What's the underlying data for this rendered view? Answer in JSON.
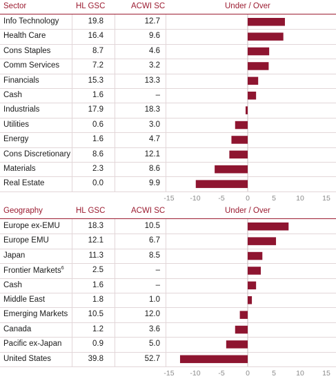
{
  "sector_table": {
    "headers": {
      "name": "Sector",
      "hl": "HL GSC",
      "acwi": "ACWI SC",
      "diff": "Under / Over"
    },
    "rows": [
      {
        "name": "Info Technology",
        "hl": "19.8",
        "acwi": "12.7"
      },
      {
        "name": "Health Care",
        "hl": "16.4",
        "acwi": "9.6"
      },
      {
        "name": "Cons Staples",
        "hl": "8.7",
        "acwi": "4.6"
      },
      {
        "name": "Comm Services",
        "hl": "7.2",
        "acwi": "3.2"
      },
      {
        "name": "Financials",
        "hl": "15.3",
        "acwi": "13.3"
      },
      {
        "name": "Cash",
        "hl": "1.6",
        "acwi": "–"
      },
      {
        "name": "Industrials",
        "hl": "17.9",
        "acwi": "18.3"
      },
      {
        "name": "Utilities",
        "hl": "0.6",
        "acwi": "3.0"
      },
      {
        "name": "Energy",
        "hl": "1.6",
        "acwi": "4.7"
      },
      {
        "name": "Cons Discretionary",
        "hl": "8.6",
        "acwi": "12.1"
      },
      {
        "name": "Materials",
        "hl": "2.3",
        "acwi": "8.6"
      },
      {
        "name": "Real Estate",
        "hl": "0.0",
        "acwi": "9.9"
      }
    ]
  },
  "geography_table": {
    "headers": {
      "name": "Geography",
      "hl": "HL GSC",
      "acwi": "ACWI SC",
      "diff": "Under / Over"
    },
    "rows": [
      {
        "name": "Europe ex-EMU",
        "hl": "18.3",
        "acwi": "10.5"
      },
      {
        "name": "Europe EMU",
        "hl": "12.1",
        "acwi": "6.7"
      },
      {
        "name": "Japan",
        "hl": "11.3",
        "acwi": "8.5"
      },
      {
        "name": "Frontier Markets",
        "sup": "6",
        "hl": "2.5",
        "acwi": "–"
      },
      {
        "name": "Cash",
        "hl": "1.6",
        "acwi": "–"
      },
      {
        "name": "Middle East",
        "hl": "1.8",
        "acwi": "1.0"
      },
      {
        "name": "Emerging Markets",
        "hl": "10.5",
        "acwi": "12.0"
      },
      {
        "name": "Canada",
        "hl": "1.2",
        "acwi": "3.6"
      },
      {
        "name": "Pacific ex-Japan",
        "hl": "0.9",
        "acwi": "5.0"
      },
      {
        "name": "United States",
        "hl": "39.8",
        "acwi": "52.7"
      }
    ]
  },
  "chart_data": [
    {
      "type": "bar",
      "orientation": "horizontal",
      "categories": [
        "Info Technology",
        "Health Care",
        "Cons Staples",
        "Comm Services",
        "Financials",
        "Cash",
        "Industrials",
        "Utilities",
        "Energy",
        "Cons Discretionary",
        "Materials",
        "Real Estate"
      ],
      "values": [
        7.1,
        6.8,
        4.1,
        4.0,
        2.0,
        1.6,
        -0.4,
        -2.4,
        -3.1,
        -3.5,
        -6.3,
        -9.9
      ],
      "xlim": [
        -15,
        15
      ],
      "xticks": [
        "-15",
        "-10",
        "-5",
        "0",
        "5",
        "10",
        "15"
      ],
      "title": "Under / Over"
    },
    {
      "type": "bar",
      "orientation": "horizontal",
      "categories": [
        "Europe ex-EMU",
        "Europe EMU",
        "Japan",
        "Frontier Markets",
        "Cash",
        "Middle East",
        "Emerging Markets",
        "Canada",
        "Pacific ex-Japan",
        "United States"
      ],
      "values": [
        7.8,
        5.4,
        2.8,
        2.5,
        1.6,
        0.8,
        -1.5,
        -2.4,
        -4.1,
        -12.9
      ],
      "xlim": [
        -15,
        15
      ],
      "xticks": [
        "-15",
        "-10",
        "-5",
        "0",
        "5",
        "10",
        "15"
      ],
      "title": "Under / Over"
    }
  ],
  "colors": {
    "accent": "#9b1b30",
    "bar": "#8e1530",
    "axis_text": "#8a8a8a",
    "rule": "#e2d6d8"
  }
}
